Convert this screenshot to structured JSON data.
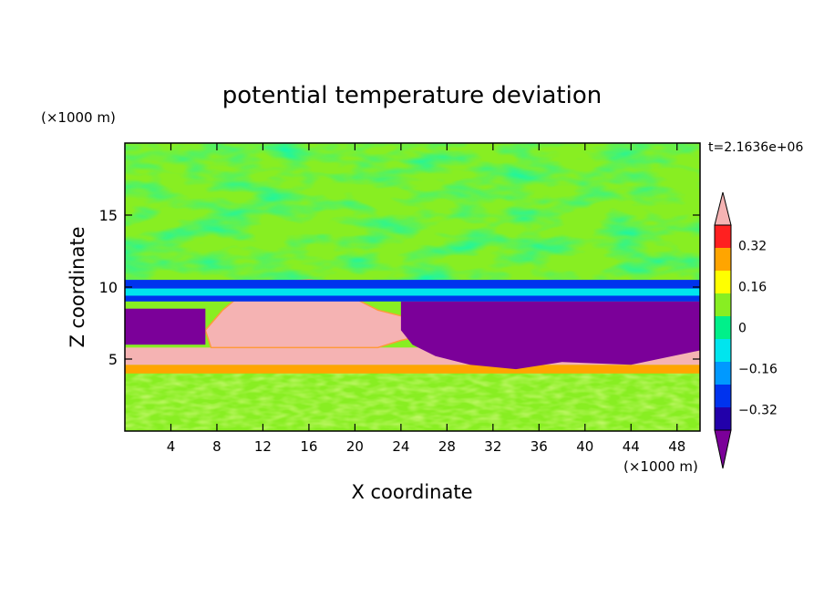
{
  "chart_data": {
    "type": "heatmap",
    "title": "potential temperature deviation",
    "xlabel": "X coordinate",
    "ylabel": "Z coordinate",
    "x_unit": "(×1000 m)",
    "y_unit": "(×1000 m)",
    "time_label": "t=2.1636e+06",
    "xlim": [
      0,
      50
    ],
    "ylim": [
      0,
      20
    ],
    "x_ticks": [
      4,
      8,
      12,
      16,
      20,
      24,
      28,
      32,
      36,
      40,
      44,
      48
    ],
    "y_ticks": [
      5,
      10,
      15
    ],
    "colorbar": {
      "levels": [
        -0.4,
        -0.32,
        -0.24,
        -0.16,
        -0.08,
        0,
        0.08,
        0.16,
        0.24,
        0.32,
        0.4
      ],
      "labels": [
        0.32,
        0.16,
        0,
        -0.16,
        -0.32
      ],
      "label_text": [
        "0.32",
        "0.16",
        "0",
        "−0.16",
        "−0.32"
      ],
      "colors": [
        "#7b0099",
        "#2200aa",
        "#0033ee",
        "#0099ff",
        "#00e5ee",
        "#00f08a",
        "#88ee22",
        "#ffff00",
        "#ffa500",
        "#ff2020",
        "#f5b3b3"
      ],
      "extend": "both"
    },
    "regions": [
      {
        "name": "near-zero noise band",
        "x": [
          0,
          50
        ],
        "z": [
          0.1,
          4.0
        ],
        "value": 0.0
      },
      {
        "name": "orange stripe",
        "x": [
          0,
          50
        ],
        "z": [
          4.0,
          4.6
        ],
        "value": 0.2
      },
      {
        "name": "red stripe",
        "x": [
          0,
          50
        ],
        "z": [
          4.6,
          5.8
        ],
        "value": 0.36
      },
      {
        "name": "warm anomaly",
        "x": [
          7,
          31
        ],
        "z": [
          5.8,
          10.5
        ],
        "value": 0.45
      },
      {
        "name": "cold layer left",
        "x": [
          0,
          7
        ],
        "z": [
          6.0,
          8.5
        ],
        "value": -0.42
      },
      {
        "name": "cold layer right",
        "x": [
          24,
          50
        ],
        "z": [
          4.3,
          9.0
        ],
        "value": -0.42
      },
      {
        "name": "cold band upper",
        "x": [
          0,
          50
        ],
        "z": [
          9.0,
          10.5
        ],
        "value": -0.3
      },
      {
        "name": "upper layer",
        "x": [
          0,
          50
        ],
        "z": [
          10.5,
          20.0
        ],
        "value": 0.02
      }
    ]
  }
}
